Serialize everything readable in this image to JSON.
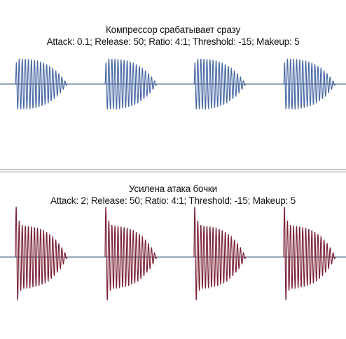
{
  "top": {
    "title": "Компрессор срабатывает сразу",
    "settings": "Attack: 0.1; Release: 50; Ratio: 4:1; Threshold: -15; Makeup: 5",
    "color": "#4a6aa5",
    "hits": 4,
    "attack_emphasis": false
  },
  "bottom": {
    "title": "Усилена атака бочки",
    "settings": "Attack: 2; Release: 50; Ratio: 4:1; Threshold: -15; Makeup: 5",
    "color": "#7a2236",
    "hits": 4,
    "attack_emphasis": true
  },
  "axis_color": "#2f4f6f"
}
